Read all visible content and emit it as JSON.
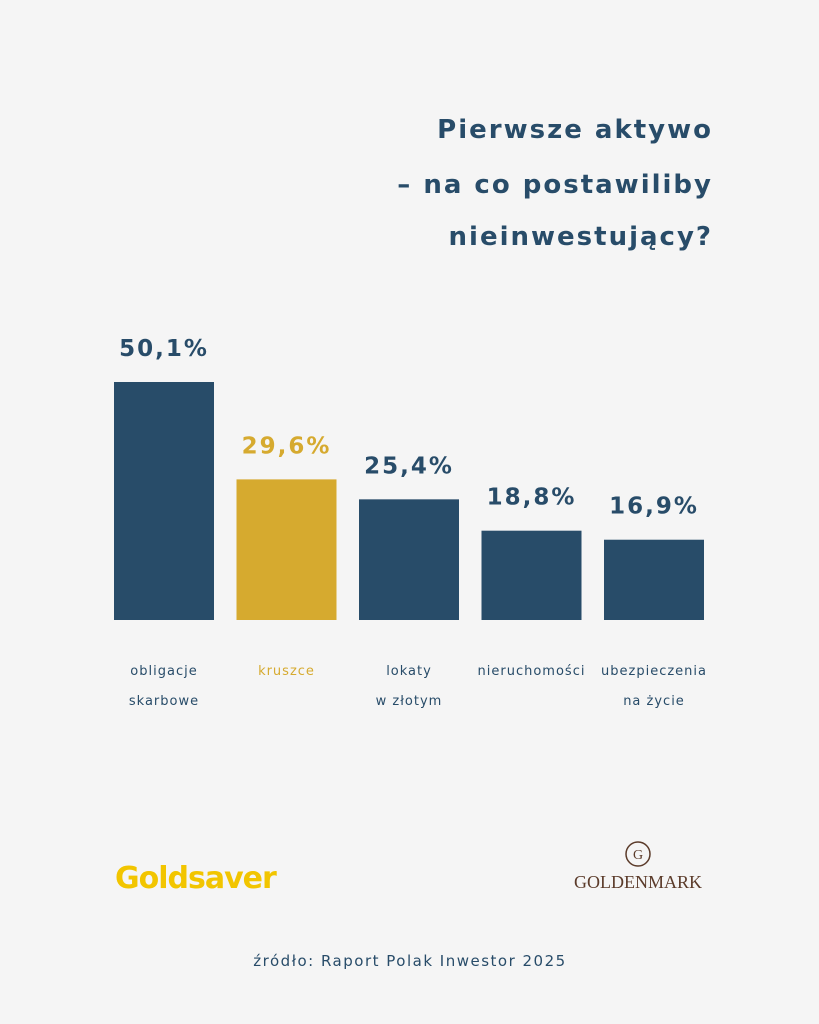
{
  "chart_data": {
    "type": "bar",
    "title": [
      "Pierwsze aktywo",
      "– na co postawiliby",
      "nieinwestujący?"
    ],
    "categories": [
      "obligacje\nskarbowe",
      "kruszce",
      "lokaty\nw złotym",
      "nieruchomości",
      "ubezpieczenia\nna życie"
    ],
    "values": [
      50.1,
      29.6,
      25.4,
      18.8,
      16.9
    ],
    "value_labels": [
      "50,1%",
      "29,6%",
      "25,4%",
      "18,8%",
      "16,9%"
    ],
    "colors": [
      "#284c69",
      "#d6aa2f",
      "#284c69",
      "#284c69",
      "#284c69"
    ],
    "source": "źródło: Raport Polak Inwestor 2025"
  },
  "brands": {
    "left": "Goldsaver",
    "right": "GOLDENMARK"
  }
}
